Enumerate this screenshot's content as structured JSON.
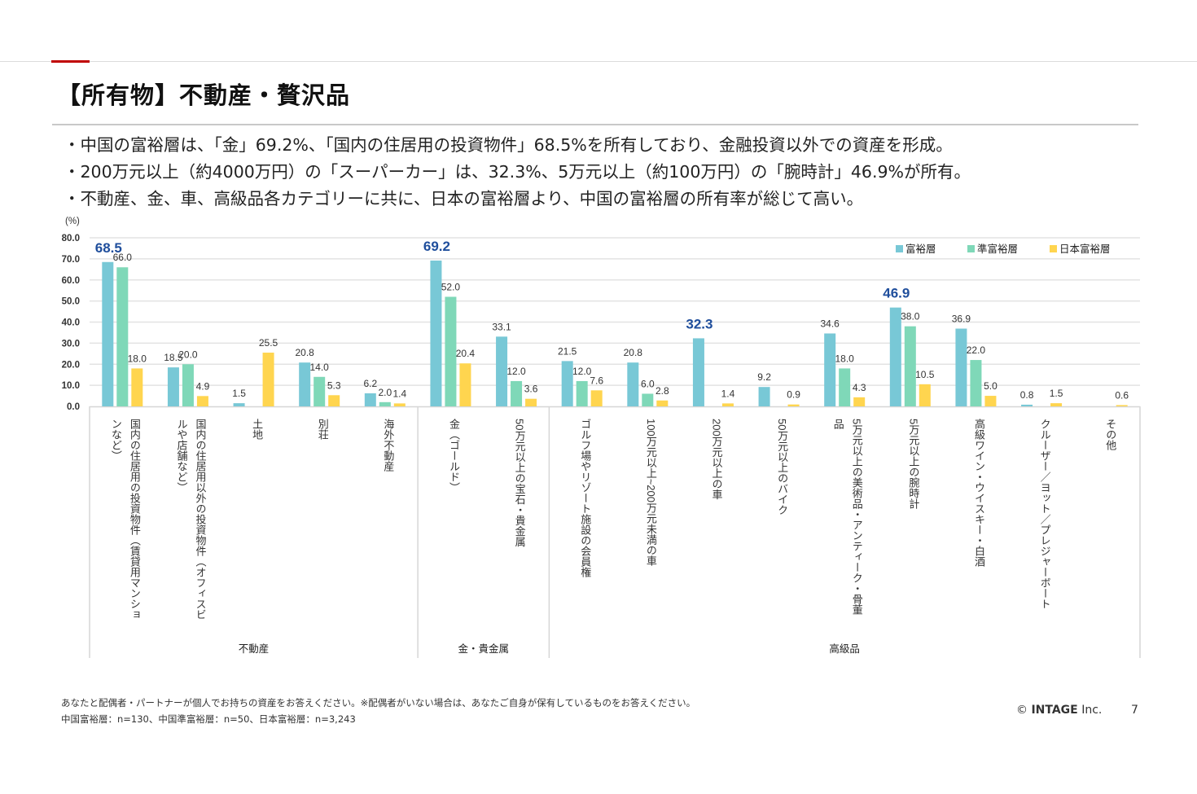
{
  "slide": {
    "title": "【所有物】不動産・贅沢品",
    "bullets": [
      "・中国の富裕層は、「金」69.2%、「国内の住居用の投資物件」68.5%を所有しており、金融投資以外での資産を形成。",
      "・200万元以上（約4000万円）の「スーパーカー」は、32.3%、5万元以上（約100万円）の「腕時計」46.9%が所有。",
      "・不動産、金、車、高級品各カテゴリーに共に、日本の富裕層より、中国の富裕層の所有率が総じて高い。"
    ],
    "footnotes": [
      "あなたと配偶者・パートナーが個人でお持ちの資産をお答えください。※配偶者がいない場合は、あなたご自身が保有しているものをお答えください。",
      "中国富裕層：n=130、中国準富裕層：n=50、日本富裕層：n=3,243"
    ],
    "copyright_symbol": "©",
    "company": "INTAGE",
    "company_suffix": "Inc.",
    "page_number": "7"
  },
  "chart_data": {
    "type": "bar",
    "title": "",
    "ylabel": "(%)",
    "xlabel": "",
    "ylim": [
      0,
      80
    ],
    "yticks": [
      "0.0",
      "10.0",
      "20.0",
      "30.0",
      "40.0",
      "50.0",
      "60.0",
      "70.0",
      "80.0"
    ],
    "grid": true,
    "legend_position": "top-right",
    "categories": [
      "国内の住居用の投資物件（賃貸用マンションなど）",
      "国内の住居用以外の投資物件（オフィスビルや店舗など）",
      "土地",
      "別荘",
      "海外不動産",
      "金（ゴールド）",
      "50万元以上の宝石・貴金属",
      "ゴルフ場やリゾート施設の会員権",
      "100万元以上~200万元未満の車",
      "200万元以上の車",
      "50万元以上のバイク",
      "5万元以上の美術品・アンティーク・骨董品",
      "5万元以上の腕時計",
      "高級ワイン・ウイスキー・白酒",
      "クルーザー／ヨット／プレジャーボート",
      "その他"
    ],
    "category_label_lines": [
      [
        "国内の住居用の投資物件（賃貸用マンショ",
        "ンなど）"
      ],
      [
        "国内の住居用以外の投資物件（オフィスビ",
        "ルや店舗など）"
      ],
      [
        "土地"
      ],
      [
        "別荘"
      ],
      [
        "海外不動産"
      ],
      [
        "金（ゴールド）"
      ],
      [
        "50万元以上の宝石・貴金属"
      ],
      [
        "ゴルフ場やリゾート施設の会員権"
      ],
      [
        "100万元以上~200万元未満の車"
      ],
      [
        "200万元以上の車"
      ],
      [
        "50万元以上のバイク"
      ],
      [
        "5万元以上の美術品・アンティーク・骨董",
        "品"
      ],
      [
        "5万元以上の腕時計"
      ],
      [
        "高級ワイン・ウイスキー・白酒"
      ],
      [
        "クルーザー／ヨット／プレジャーボート"
      ],
      [
        "その他"
      ]
    ],
    "groups": [
      {
        "label": "不動産",
        "from": 0,
        "to": 4
      },
      {
        "label": "金・貴金属",
        "from": 5,
        "to": 6
      },
      {
        "label": "高級品",
        "from": 7,
        "to": 15
      }
    ],
    "series": [
      {
        "name": "富裕層",
        "color": "#78c8d6",
        "values": [
          68.5,
          18.5,
          1.5,
          20.8,
          6.2,
          69.2,
          33.1,
          21.5,
          20.8,
          32.3,
          9.2,
          34.6,
          46.9,
          36.9,
          0.8,
          null
        ]
      },
      {
        "name": "準富裕層",
        "color": "#7fd8b8",
        "values": [
          66.0,
          20.0,
          null,
          14.0,
          2.0,
          52.0,
          12.0,
          12.0,
          6.0,
          null,
          null,
          18.0,
          38.0,
          22.0,
          null,
          null
        ]
      },
      {
        "name": "日本富裕層",
        "color": "#ffd54f",
        "values": [
          18.0,
          4.9,
          25.5,
          5.3,
          1.4,
          20.4,
          3.6,
          7.6,
          2.8,
          1.4,
          0.9,
          4.3,
          10.5,
          5.0,
          1.5,
          0.6
        ]
      }
    ],
    "highlighted_labels": [
      {
        "series": 0,
        "category": 0,
        "value": "68.5"
      },
      {
        "series": 0,
        "category": 5,
        "value": "69.2"
      },
      {
        "series": 0,
        "category": 9,
        "value": "32.3"
      },
      {
        "series": 0,
        "category": 12,
        "value": "46.9"
      }
    ],
    "highlight_color": "#1f4e9c"
  }
}
